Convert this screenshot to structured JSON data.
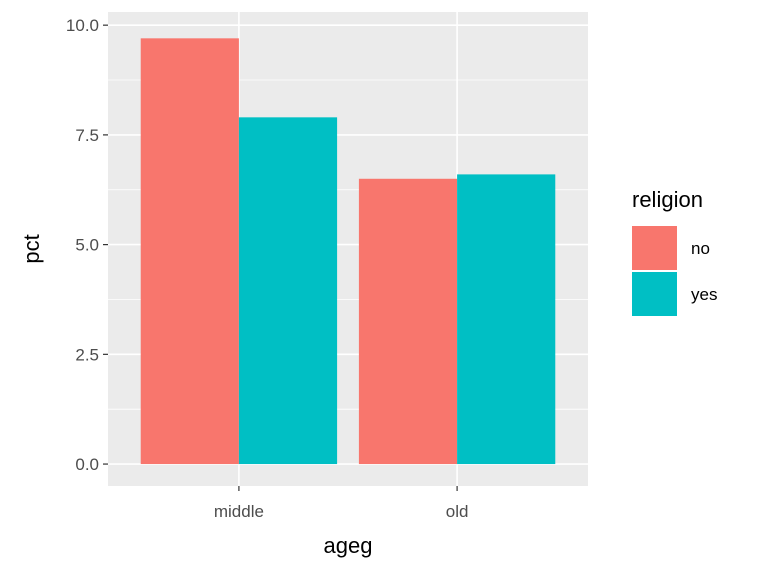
{
  "chart_data": {
    "type": "bar",
    "xlabel": "ageg",
    "ylabel": "pct",
    "categories": [
      "middle",
      "old"
    ],
    "series": [
      {
        "name": "no",
        "values": [
          9.7,
          6.5
        ],
        "color": "#F8766D"
      },
      {
        "name": "yes",
        "values": [
          7.9,
          6.6
        ],
        "color": "#00BFC4"
      }
    ],
    "ylim": [
      -0.5,
      10.3
    ],
    "yticks": [
      0.0,
      2.5,
      5.0,
      7.5,
      10.0
    ],
    "ytick_labels": [
      "0.0",
      "2.5",
      "5.0",
      "7.5",
      "10.0"
    ],
    "grid": true,
    "panel_background": "#EBEBEB",
    "grid_color": "#FFFFFF",
    "legend": {
      "title": "religion",
      "placement": "right"
    }
  }
}
